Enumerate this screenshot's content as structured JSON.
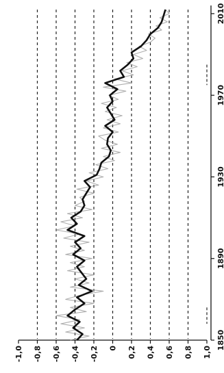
{
  "chart_data": {
    "type": "line",
    "orientation": "rotated-90-ccw",
    "title": "",
    "xlabel": "",
    "ylabel": "",
    "x_ticks": [
      1850,
      1890,
      1930,
      1970,
      2010
    ],
    "x_tick_labels": [
      "1850",
      "1890",
      "1930",
      "1970",
      "2010"
    ],
    "y_ticks": [
      1.0,
      0.8,
      0.6,
      0.4,
      0.2,
      0,
      -0.2,
      -0.4,
      -0.6,
      -0.8,
      -1.0
    ],
    "y_tick_labels": [
      "1,0",
      "0,8",
      "0,6",
      "0,4",
      "0,2",
      "0",
      "-0,2",
      "-0,4",
      "-0,6",
      "-0,8",
      "-1,0"
    ],
    "xlim": [
      1850,
      2014
    ],
    "ylim": [
      -1.0,
      1.0
    ],
    "grid": "dashed horizontal lines at each y tick",
    "series": [
      {
        "style": "thick black smoothed line",
        "color": "#111111",
        "x": [
          1850,
          1853,
          1856,
          1859,
          1862,
          1865,
          1868,
          1871,
          1874,
          1877,
          1880,
          1883,
          1886,
          1889,
          1892,
          1895,
          1898,
          1901,
          1904,
          1907,
          1910,
          1913,
          1916,
          1919,
          1922,
          1925,
          1928,
          1931,
          1934,
          1937,
          1940,
          1943,
          1946,
          1949,
          1952,
          1955,
          1958,
          1961,
          1964,
          1967,
          1970,
          1973,
          1976,
          1979,
          1982,
          1985,
          1988,
          1991,
          1994,
          1997,
          2000,
          2003,
          2006,
          2009,
          2012
        ],
        "values": [
          -0.38,
          -0.32,
          -0.42,
          -0.35,
          -0.48,
          -0.4,
          -0.3,
          -0.38,
          -0.22,
          -0.36,
          -0.28,
          -0.33,
          -0.38,
          -0.3,
          -0.42,
          -0.34,
          -0.4,
          -0.3,
          -0.48,
          -0.38,
          -0.44,
          -0.34,
          -0.3,
          -0.32,
          -0.28,
          -0.24,
          -0.3,
          -0.17,
          -0.14,
          -0.12,
          -0.04,
          -0.02,
          -0.06,
          -0.05,
          0.0,
          -0.08,
          0.02,
          -0.02,
          -0.06,
          0.0,
          -0.03,
          0.05,
          -0.08,
          0.12,
          0.08,
          0.16,
          0.22,
          0.2,
          0.3,
          0.36,
          0.4,
          0.48,
          0.52,
          0.54,
          0.56
        ]
      },
      {
        "style": "grey noisy line (monthly / annual values)",
        "color": "#9a9a9a",
        "x": [
          1850,
          1852,
          1854,
          1856,
          1858,
          1860,
          1862,
          1864,
          1866,
          1868,
          1870,
          1872,
          1874,
          1876,
          1878,
          1880,
          1882,
          1884,
          1886,
          1888,
          1890,
          1892,
          1894,
          1896,
          1898,
          1900,
          1902,
          1904,
          1906,
          1908,
          1910,
          1912,
          1914,
          1916,
          1918,
          1920,
          1922,
          1924,
          1926,
          1928,
          1930,
          1932,
          1934,
          1936,
          1938,
          1940,
          1942,
          1944,
          1946,
          1948,
          1950,
          1952,
          1954,
          1956,
          1958,
          1960,
          1962,
          1964,
          1966,
          1968,
          1970,
          1972,
          1974,
          1976,
          1978,
          1980,
          1982,
          1984,
          1986,
          1988,
          1990,
          1992,
          1994,
          1996,
          1998,
          2000,
          2002,
          2004,
          2006,
          2008,
          2010,
          2012
        ],
        "values": [
          -0.45,
          -0.25,
          -0.5,
          -0.3,
          -0.55,
          -0.35,
          -0.6,
          -0.28,
          -0.45,
          -0.2,
          -0.5,
          -0.35,
          -0.1,
          -0.45,
          -0.25,
          -0.4,
          -0.2,
          -0.48,
          -0.3,
          -0.45,
          -0.22,
          -0.5,
          -0.3,
          -0.45,
          -0.25,
          -0.52,
          -0.35,
          -0.6,
          -0.4,
          -0.55,
          -0.32,
          -0.48,
          -0.22,
          -0.4,
          -0.3,
          -0.35,
          -0.2,
          -0.38,
          -0.15,
          -0.28,
          -0.1,
          -0.25,
          -0.05,
          -0.18,
          0.02,
          -0.1,
          0.08,
          -0.12,
          0.05,
          -0.08,
          -0.15,
          0.06,
          -0.1,
          0.08,
          -0.06,
          0.1,
          -0.08,
          0.04,
          -0.12,
          0.06,
          -0.04,
          0.14,
          -0.1,
          0.2,
          0.02,
          0.22,
          0.1,
          0.26,
          0.15,
          0.32,
          0.22,
          0.36,
          0.28,
          0.4,
          0.45,
          0.38,
          0.52,
          0.46,
          0.58,
          0.5,
          0.6,
          0.56
        ]
      }
    ],
    "annotations": [
      {
        "text": "",
        "note": "short dashed reference segment near y=1.0 at approx. 1864 and approx. 1982"
      }
    ]
  }
}
